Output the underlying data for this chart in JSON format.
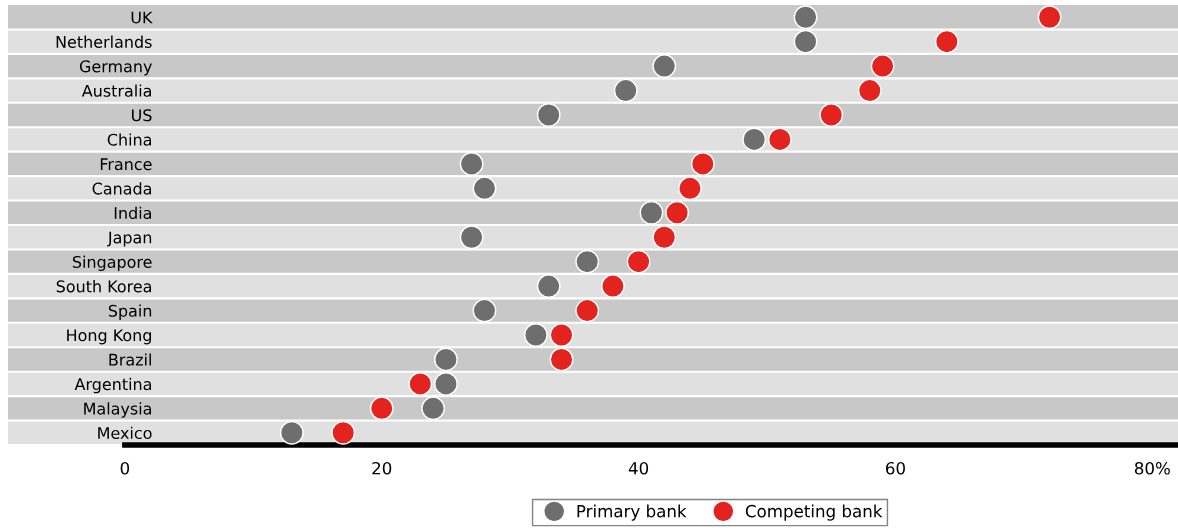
{
  "chart_data": {
    "type": "scatter",
    "categories": [
      "UK",
      "Netherlands",
      "Germany",
      "Australia",
      "US",
      "China",
      "France",
      "Canada",
      "India",
      "Japan",
      "Singapore",
      "South Korea",
      "Spain",
      "Hong Kong",
      "Brazil",
      "Argentina",
      "Malaysia",
      "Mexico"
    ],
    "orientation": "horizontal",
    "series": [
      {
        "name": "Primary bank",
        "color": "#6e6e6e",
        "values": [
          53,
          53,
          42,
          39,
          33,
          49,
          27,
          28,
          41,
          27,
          36,
          33,
          28,
          32,
          25,
          25,
          24,
          13
        ]
      },
      {
        "name": "Competing bank",
        "color": "#e3231e",
        "values": [
          72,
          64,
          59,
          58,
          55,
          51,
          45,
          44,
          43,
          42,
          40,
          38,
          36,
          34,
          34,
          23,
          20,
          17
        ]
      }
    ],
    "xlim": [
      -9.1,
      82
    ],
    "xticks": [
      0,
      20,
      40,
      60,
      {
        "value": 80,
        "label": "80%"
      }
    ],
    "marker": "circle",
    "legend": "bottom",
    "grid": false
  }
}
